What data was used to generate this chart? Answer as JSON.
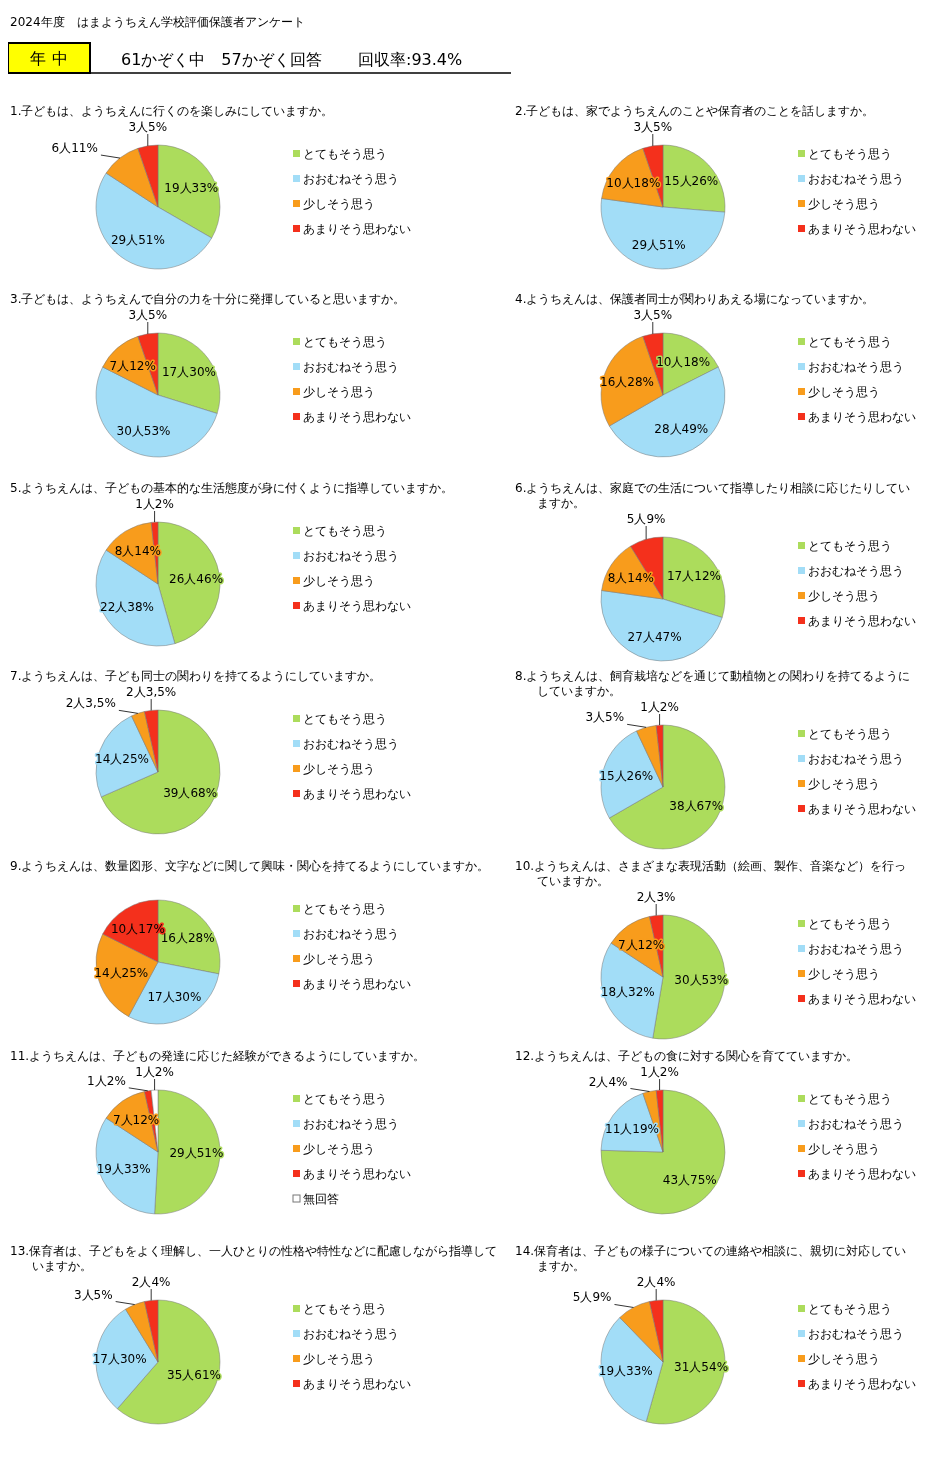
{
  "chart_data": [
    {
      "type": "other",
      "title": "2024年度　はまようちえん学校評価保護者アンケート",
      "annotations": [
        "年 中",
        "61かぞく中　57かぞく回答",
        "回収率:93.4%"
      ]
    },
    {
      "type": "pie",
      "title": "1.子どもは、ようちえんに行くのを楽しみにしていますか。",
      "categories": [
        "とてもそう思う",
        "おおむねそう思う",
        "少しそう思う",
        "あまりそう思わない"
      ],
      "values": [
        19,
        29,
        6,
        3
      ],
      "value_labels": [
        "19人33%",
        "29人51%",
        "6人11%",
        "3人5%"
      ],
      "colors": [
        "#acdc5c",
        "#a2ddf7",
        "#f89c1c",
        "#f4301c"
      ],
      "legend": "right"
    },
    {
      "type": "pie",
      "title": "2.子どもは、家でようちえんのことや保育者のことを話しますか。",
      "categories": [
        "とてもそう思う",
        "おおむねそう思う",
        "少しそう思う",
        "あまりそう思わない"
      ],
      "values": [
        15,
        29,
        10,
        3
      ],
      "value_labels": [
        "15人26%",
        "29人51%",
        "10人18%",
        "3人5%"
      ],
      "colors": [
        "#acdc5c",
        "#a2ddf7",
        "#f89c1c",
        "#f4301c"
      ],
      "legend": "right"
    },
    {
      "type": "pie",
      "title": "3.子どもは、ようちえんで自分の力を十分に発揮していると思いますか。",
      "categories": [
        "とてもそう思う",
        "おおむねそう思う",
        "少しそう思う",
        "あまりそう思わない"
      ],
      "values": [
        17,
        30,
        7,
        3
      ],
      "value_labels": [
        "17人30%",
        "30人53%",
        "7人12%",
        "3人5%"
      ],
      "colors": [
        "#acdc5c",
        "#a2ddf7",
        "#f89c1c",
        "#f4301c"
      ],
      "legend": "right"
    },
    {
      "type": "pie",
      "title": "4.ようちえんは、保護者同士が関わりあえる場になっていますか。",
      "categories": [
        "とてもそう思う",
        "おおむねそう思う",
        "少しそう思う",
        "あまりそう思わない"
      ],
      "values": [
        10,
        28,
        16,
        3
      ],
      "value_labels": [
        "10人18%",
        "28人49%",
        "16人28%",
        "3人5%"
      ],
      "colors": [
        "#acdc5c",
        "#a2ddf7",
        "#f89c1c",
        "#f4301c"
      ],
      "legend": "right"
    },
    {
      "type": "pie",
      "title": "5.ようちえんは、子どもの基本的な生活態度が身に付くように指導していますか。",
      "categories": [
        "とてもそう思う",
        "おおむねそう思う",
        "少しそう思う",
        "あまりそう思わない"
      ],
      "values": [
        26,
        22,
        8,
        1
      ],
      "value_labels": [
        "26人46%",
        "22人38%",
        "8人14%",
        "1人2%"
      ],
      "colors": [
        "#acdc5c",
        "#a2ddf7",
        "#f89c1c",
        "#f4301c"
      ],
      "legend": "right"
    },
    {
      "type": "pie",
      "title": "6.ようちえんは、家庭での生活について指導したり相談に応じたりしていますか。",
      "categories": [
        "とてもそう思う",
        "おおむねそう思う",
        "少しそう思う",
        "あまりそう思わない"
      ],
      "values": [
        17,
        27,
        8,
        5
      ],
      "value_labels": [
        "17人12%",
        "27人47%",
        "8人14%",
        "5人9%"
      ],
      "colors": [
        "#acdc5c",
        "#a2ddf7",
        "#f89c1c",
        "#f4301c"
      ],
      "legend": "right"
    },
    {
      "type": "pie",
      "title": "7.ようちえんは、子ども同士の関わりを持てるようにしていますか。",
      "categories": [
        "とてもそう思う",
        "おおむねそう思う",
        "少しそう思う",
        "あまりそう思わない"
      ],
      "values": [
        39,
        14,
        2,
        2
      ],
      "value_labels": [
        "39人68%",
        "14人25%",
        "2人3,5%",
        "2人3,5%"
      ],
      "colors": [
        "#acdc5c",
        "#a2ddf7",
        "#f89c1c",
        "#f4301c"
      ],
      "legend": "right"
    },
    {
      "type": "pie",
      "title": "8.ようちえんは、飼育栽培などを通じて動植物との関わりを持てるようにしていますか。",
      "categories": [
        "とてもそう思う",
        "おおむねそう思う",
        "少しそう思う",
        "あまりそう思わない"
      ],
      "values": [
        38,
        15,
        3,
        1
      ],
      "value_labels": [
        "38人67%",
        "15人26%",
        "3人5%",
        "1人2%"
      ],
      "colors": [
        "#acdc5c",
        "#a2ddf7",
        "#f89c1c",
        "#f4301c"
      ],
      "legend": "right"
    },
    {
      "type": "pie",
      "title": "9.ようちえんは、数量図形、文字などに関して興味・関心を持てるようにしていますか。",
      "categories": [
        "とてもそう思う",
        "おおむねそう思う",
        "少しそう思う",
        "あまりそう思わない"
      ],
      "values": [
        16,
        17,
        14,
        10
      ],
      "value_labels": [
        "16人28%",
        "17人30%",
        "14人25%",
        "10人17%"
      ],
      "colors": [
        "#acdc5c",
        "#a2ddf7",
        "#f89c1c",
        "#f4301c"
      ],
      "legend": "right"
    },
    {
      "type": "pie",
      "title": "10.ようちえんは、さまざまな表現活動（絵画、製作、音楽など）を行っていますか。",
      "categories": [
        "とてもそう思う",
        "おおむねそう思う",
        "少しそう思う",
        "あまりそう思わない"
      ],
      "values": [
        30,
        18,
        7,
        2
      ],
      "value_labels": [
        "30人53%",
        "18人32%",
        "7人12%",
        "2人3%"
      ],
      "colors": [
        "#acdc5c",
        "#a2ddf7",
        "#f89c1c",
        "#f4301c"
      ],
      "legend": "right"
    },
    {
      "type": "pie",
      "title": "11.ようちえんは、子どもの発達に応じた経験ができるようにしていますか。",
      "categories": [
        "とてもそう思う",
        "おおむねそう思う",
        "少しそう思う",
        "あまりそう思わない",
        "無回答"
      ],
      "values": [
        29,
        19,
        7,
        1,
        1
      ],
      "value_labels": [
        "29人51%",
        "19人33%",
        "7人12%",
        "1人2%",
        "1人2%"
      ],
      "colors": [
        "#acdc5c",
        "#a2ddf7",
        "#f89c1c",
        "#f4301c",
        "#ffffff"
      ],
      "legend": "right"
    },
    {
      "type": "pie",
      "title": "12.ようちえんは、子どもの食に対する関心を育てていますか。",
      "categories": [
        "とてもそう思う",
        "おおむねそう思う",
        "少しそう思う",
        "あまりそう思わない"
      ],
      "values": [
        43,
        11,
        2,
        1
      ],
      "value_labels": [
        "43人75%",
        "11人19%",
        "2人4%",
        "1人2%"
      ],
      "colors": [
        "#acdc5c",
        "#a2ddf7",
        "#f89c1c",
        "#f4301c"
      ],
      "legend": "right"
    },
    {
      "type": "pie",
      "title": "13.保育者は、子どもをよく理解し、一人ひとりの性格や特性などに配慮しながら指導していますか。",
      "categories": [
        "とてもそう思う",
        "おおむねそう思う",
        "少しそう思う",
        "あまりそう思わない"
      ],
      "values": [
        35,
        17,
        3,
        2
      ],
      "value_labels": [
        "35人61%",
        "17人30%",
        "3人5%",
        "2人4%"
      ],
      "colors": [
        "#acdc5c",
        "#a2ddf7",
        "#f89c1c",
        "#f4301c"
      ],
      "legend": "right"
    },
    {
      "type": "pie",
      "title": "14.保育者は、子どもの様子についての連絡や相談に、親切に対応していますか。",
      "categories": [
        "とてもそう思う",
        "おおむねそう思う",
        "少しそう思う",
        "あまりそう思わない"
      ],
      "values": [
        31,
        19,
        5,
        2
      ],
      "value_labels": [
        "31人54%",
        "19人33%",
        "5人9%",
        "2人4%"
      ],
      "colors": [
        "#acdc5c",
        "#a2ddf7",
        "#f89c1c",
        "#f4301c"
      ],
      "legend": "right"
    }
  ]
}
